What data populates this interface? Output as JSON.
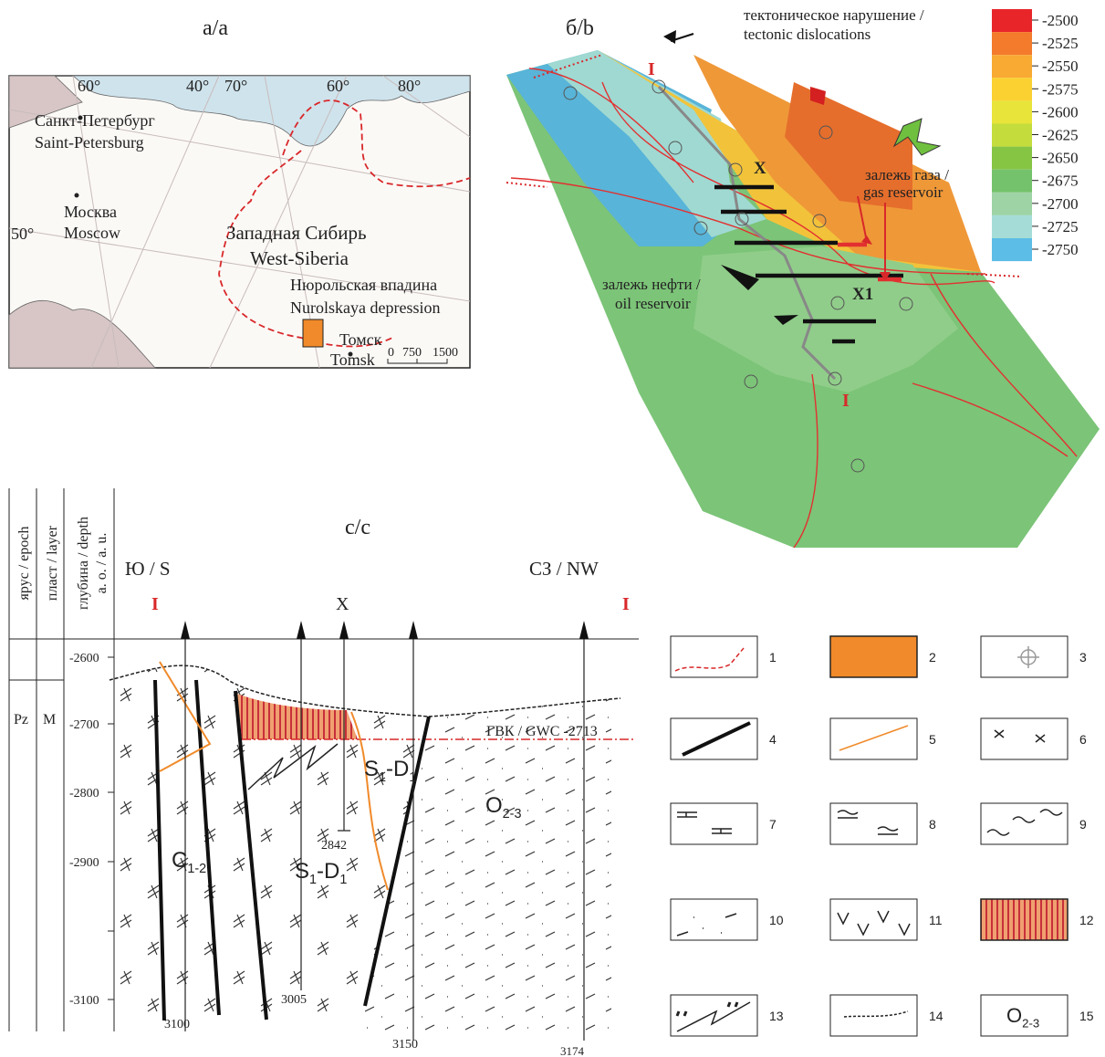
{
  "panel_a": {
    "title": "а/а",
    "grid_labels": [
      "60°",
      "40°",
      "70°",
      "60°",
      "80°",
      "50°"
    ],
    "places": [
      "Санкт-Петербург",
      "Saint-Petersburg",
      "Москва",
      "Moscow",
      "Западная Сибирь",
      "West-Siberia",
      "Нюрольская впадина",
      "Nurolskaya depression",
      "Томск",
      "Tomsk"
    ],
    "scale": [
      "0",
      "750",
      "1500"
    ]
  },
  "panel_b": {
    "title": "б/b",
    "labels": [
      "тектоническое нарушение /",
      "tectonic dislocations",
      "I",
      "X",
      "залежь газа /",
      "gas reservoir",
      "залежь нефти /",
      "oil reservoir",
      "X1",
      "I"
    ],
    "color_scale": {
      "values": [
        "-2500",
        "-2525",
        "-2550",
        "-2575",
        "-2600",
        "-2625",
        "-2650",
        "-2675",
        "-2700",
        "-2725",
        "-2750"
      ],
      "colors": [
        "#e8262a",
        "#f47a2c",
        "#f8aa32",
        "#fbd132",
        "#e9e43a",
        "#c4dc3c",
        "#86c444",
        "#74c26c",
        "#9ed3a6",
        "#a6dcd8",
        "#5cbde6"
      ]
    }
  },
  "panel_c": {
    "title": "с/с",
    "columns": [
      "ярус / epoch",
      "пласт / layer",
      "глубина / depth",
      "а. о. / a. u."
    ],
    "units": [
      "Pz",
      "M"
    ],
    "depth_labels": [
      "-2600",
      "-2700",
      "-2800",
      "-2900",
      "-3100"
    ],
    "directions": [
      "Ю / S",
      "СЗ / NW"
    ],
    "section_marks": [
      "I",
      "X",
      "I"
    ],
    "gwc": "ГВК / GWC -2713",
    "formations": [
      [
        "C",
        "1-2"
      ],
      [
        "S",
        "1",
        "-D",
        "1"
      ],
      [
        "S",
        "1",
        "-D",
        "1"
      ],
      [
        "O",
        "2-3"
      ]
    ],
    "wells": [
      "3100",
      "3005",
      "2842",
      "3150",
      "3174"
    ]
  },
  "legend": {
    "numbers": [
      "1",
      "2",
      "3",
      "4",
      "5",
      "6",
      "7",
      "8",
      "9",
      "10",
      "11",
      "12",
      "13",
      "14",
      "15"
    ],
    "item15": [
      "O",
      "2-3"
    ]
  }
}
